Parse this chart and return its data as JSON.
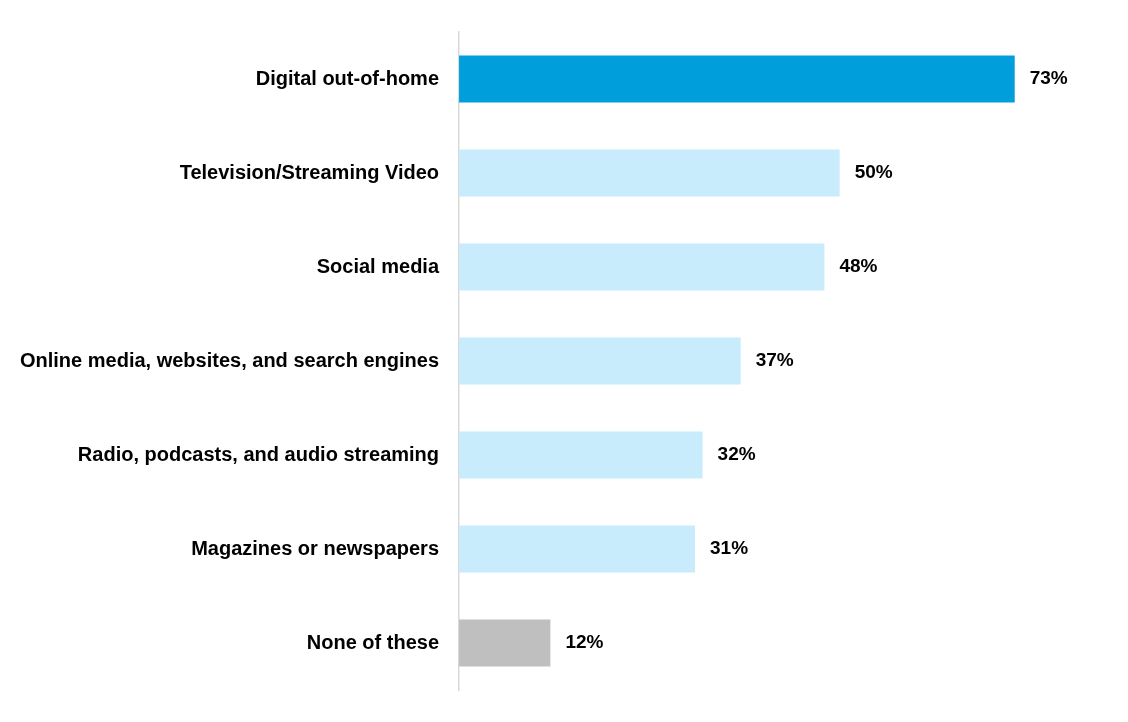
{
  "chart_data": {
    "type": "bar",
    "orientation": "horizontal",
    "categories": [
      "Digital out-of-home",
      "Television/Streaming Video",
      "Social media",
      "Online media, websites, and search engines",
      "Radio, podcasts, and audio streaming",
      "Magazines or newspapers",
      "None of these"
    ],
    "values": [
      73,
      50,
      48,
      37,
      32,
      31,
      12
    ],
    "value_labels": [
      "73%",
      "50%",
      "48%",
      "37%",
      "32%",
      "31%",
      "12%"
    ],
    "colors": [
      "#009fdb",
      "#c8ecfc",
      "#c8ecfc",
      "#c8ecfc",
      "#c8ecfc",
      "#c8ecfc",
      "#bfbfbf"
    ],
    "tick_labels": "y",
    "legend": false
  }
}
